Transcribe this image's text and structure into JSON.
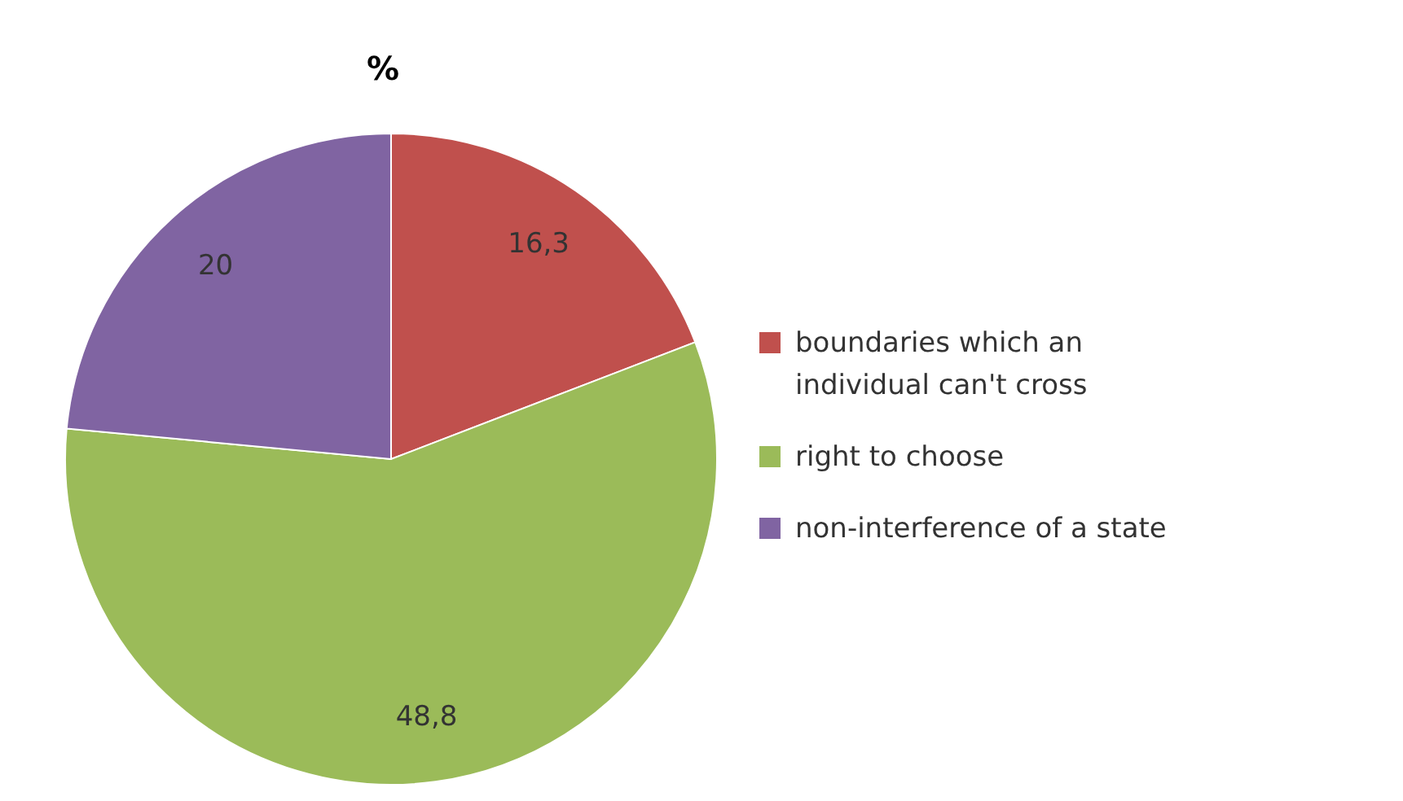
{
  "chart_data": {
    "type": "pie",
    "title": "%",
    "categories": [
      "boundaries which an individual can't cross",
      "right to choose",
      "non-interference of a state"
    ],
    "values": [
      16.3,
      48.8,
      20
    ],
    "value_labels": [
      "16,3",
      "48,8",
      "20"
    ],
    "colors": [
      "#c0504d",
      "#9bbb59",
      "#8064a2"
    ],
    "legend": "right"
  }
}
